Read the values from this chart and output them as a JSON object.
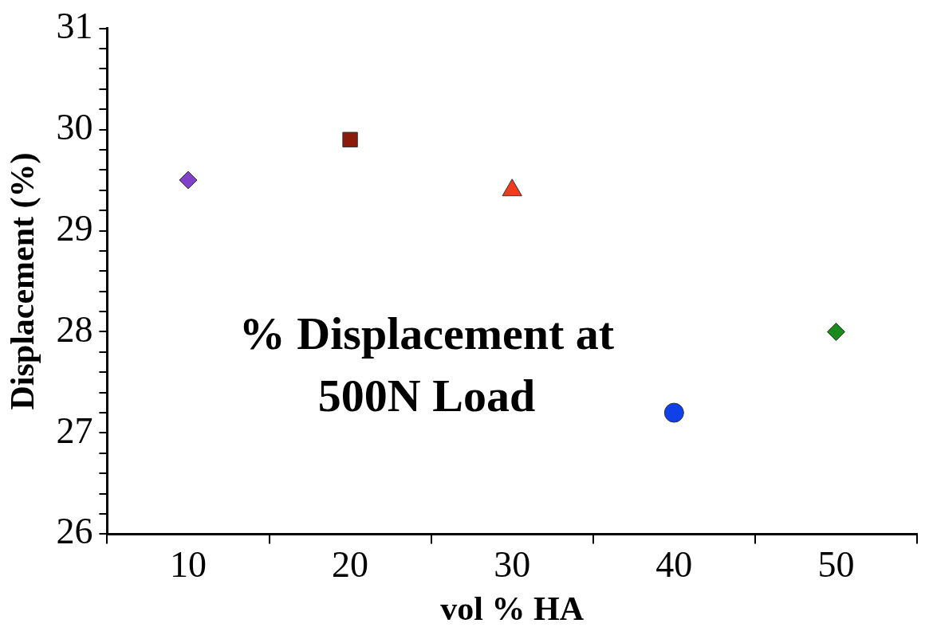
{
  "chart_data": {
    "type": "scatter",
    "xlabel": "vol % HA",
    "ylabel": "Displacement (%)",
    "categories": [
      "10",
      "20",
      "30",
      "40",
      "50"
    ],
    "series": [
      {
        "x": [
          "10"
        ],
        "values": [
          29.5
        ],
        "color": "#8040c8",
        "marker": "diamond"
      },
      {
        "x": [
          "20"
        ],
        "values": [
          29.9
        ],
        "color": "#8b1a0a",
        "marker": "square"
      },
      {
        "x": [
          "30"
        ],
        "values": [
          29.4
        ],
        "color": "#f03c1e",
        "marker": "triangle"
      },
      {
        "x": [
          "40"
        ],
        "values": [
          27.2
        ],
        "color": "#1040e8",
        "marker": "circle"
      },
      {
        "x": [
          "50"
        ],
        "values": [
          28.0
        ],
        "color": "#1a8a1a",
        "marker": "diamond"
      }
    ],
    "ylim": [
      26,
      31
    ],
    "yticks": [
      26,
      {
        "value": 26.2,
        "label": null
      },
      {
        "value": 26.4,
        "label": null
      },
      {
        "value": 26.6,
        "label": null
      },
      {
        "value": 26.8,
        "label": null
      },
      27,
      {
        "value": 27.2,
        "label": null
      },
      {
        "value": 27.4,
        "label": null
      },
      {
        "value": 27.6,
        "label": null
      },
      {
        "value": 27.8,
        "label": null
      },
      28,
      {
        "value": 28.2,
        "label": null
      },
      {
        "value": 28.4,
        "label": null
      },
      {
        "value": 28.6,
        "label": null
      },
      {
        "value": 28.8,
        "label": null
      },
      29,
      {
        "value": 29.2,
        "label": null
      },
      {
        "value": 29.4,
        "label": null
      },
      {
        "value": 29.6,
        "label": null
      },
      {
        "value": 29.8,
        "label": null
      },
      30,
      {
        "value": 30.2,
        "label": null
      },
      {
        "value": 30.4,
        "label": null
      },
      {
        "value": 30.6,
        "label": null
      },
      {
        "value": 30.8,
        "label": null
      },
      31
    ],
    "annotations": [
      "% Displacement at 500N Load"
    ],
    "grid": false,
    "legend": false
  }
}
